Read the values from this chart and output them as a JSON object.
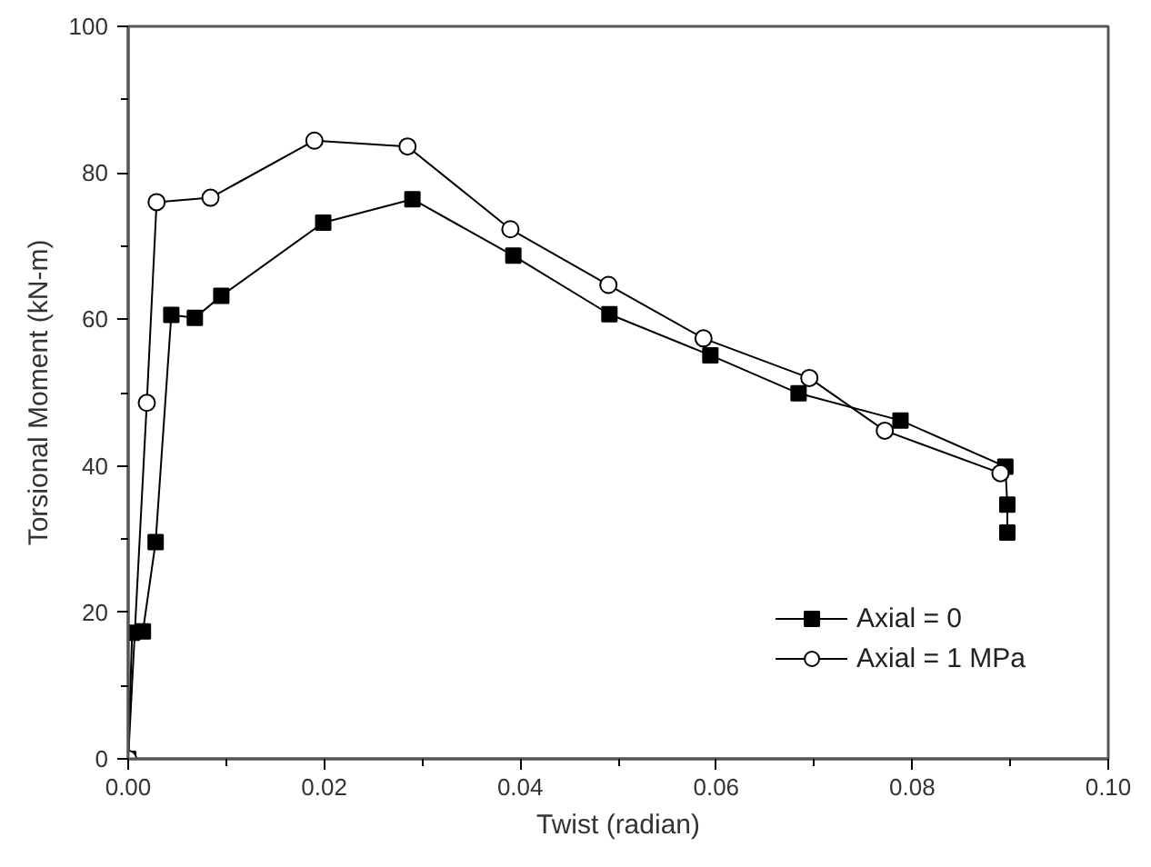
{
  "chart_data": {
    "type": "line",
    "xlabel": "Twist (radian)",
    "ylabel": "Torsional Moment (kN-m)",
    "xlim": [
      0,
      0.1
    ],
    "ylim": [
      0,
      100
    ],
    "xticks": [
      {
        "value": 0,
        "label": "0.00"
      },
      {
        "value": 0.02,
        "label": "0.02"
      },
      {
        "value": 0.04,
        "label": "0.04"
      },
      {
        "value": 0.06,
        "label": "0.06"
      },
      {
        "value": 0.08,
        "label": "0.08"
      },
      {
        "value": 0.1,
        "label": "0.10"
      }
    ],
    "yticks": [
      0,
      20,
      40,
      60,
      80,
      100
    ],
    "grid": false,
    "legend": "bottom right",
    "line_style": "solid",
    "series": [
      {
        "name": "Axial = 0",
        "color": "#000000",
        "marker": "square",
        "x": [
          0,
          0.0004,
          0.0015,
          0.0028,
          0.0044,
          0.0068,
          0.0095,
          0.0199,
          0.029,
          0.0393,
          0.0491,
          0.0594,
          0.0684,
          0.0788,
          0.0895,
          0.0897,
          0.0897
        ],
        "values": [
          0,
          17.2,
          17.4,
          29.6,
          60.6,
          60.2,
          63.2,
          73.2,
          76.4,
          68.7,
          60.7,
          55.1,
          49.9,
          46.2,
          39.9,
          34.7,
          30.9
        ]
      },
      {
        "name": "Axial = 1 MPa",
        "color": "#000000",
        "marker": "circle",
        "x": [
          0,
          0.0019,
          0.0029,
          0.0084,
          0.019,
          0.0285,
          0.039,
          0.049,
          0.0587,
          0.0695,
          0.0772,
          0.089
        ],
        "values": [
          0,
          48.6,
          76.0,
          76.6,
          84.4,
          83.6,
          72.3,
          64.7,
          57.4,
          52.0,
          44.8,
          39.0
        ]
      }
    ]
  }
}
